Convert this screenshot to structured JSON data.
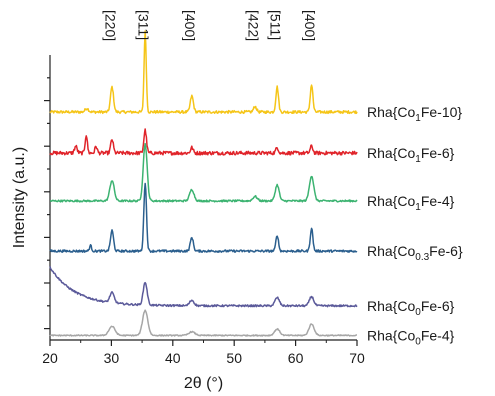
{
  "chart_data": {
    "type": "line",
    "title": "",
    "xlabel": "2θ (°)",
    "ylabel": "Intensity (a.u.)",
    "xlim": [
      20,
      70
    ],
    "ylim": [
      0,
      6.25
    ],
    "x_ticks": [
      20,
      30,
      40,
      50,
      60,
      70
    ],
    "grid": false,
    "legend": "series labels at right end of each trace",
    "peak_labels": [
      {
        "text": "[220]",
        "x": 30.1
      },
      {
        "text": "[311]",
        "x": 35.5
      },
      {
        "text": "[400]",
        "x": 43.1
      },
      {
        "text": "[422]",
        "x": 53.4
      },
      {
        "text": "[511]",
        "x": 57.0
      },
      {
        "text": "[400]",
        "x": 62.6
      }
    ],
    "series": [
      {
        "name": "Rha{Co1Fe-10}",
        "label": {
          "prefix": "Rha{Co",
          "sub": "1",
          "suffix": "Fe-10}"
        },
        "color": "#f5c518",
        "baseline": 5.0,
        "noise": 0.03,
        "peaks": [
          {
            "x": 30.1,
            "h": 0.55,
            "w": 0.35
          },
          {
            "x": 35.5,
            "h": 1.75,
            "w": 0.25
          },
          {
            "x": 43.1,
            "h": 0.35,
            "w": 0.35
          },
          {
            "x": 53.4,
            "h": 0.12,
            "w": 0.35
          },
          {
            "x": 57.0,
            "h": 0.55,
            "w": 0.3
          },
          {
            "x": 62.6,
            "h": 0.6,
            "w": 0.3
          },
          {
            "x": 26.0,
            "h": 0.08,
            "w": 0.4
          }
        ]
      },
      {
        "name": "Rha{Co1Fe-6}",
        "label": {
          "prefix": "Rha{Co",
          "sub": "1",
          "suffix": "Fe-6}"
        },
        "color": "#e0242a",
        "baseline": 4.1,
        "noise": 0.04,
        "peaks": [
          {
            "x": 25.9,
            "h": 0.4,
            "w": 0.25
          },
          {
            "x": 30.1,
            "h": 0.3,
            "w": 0.3
          },
          {
            "x": 35.5,
            "h": 0.5,
            "w": 0.3
          },
          {
            "x": 43.1,
            "h": 0.12,
            "w": 0.3
          },
          {
            "x": 57.0,
            "h": 0.12,
            "w": 0.3
          },
          {
            "x": 62.6,
            "h": 0.15,
            "w": 0.3
          },
          {
            "x": 27.5,
            "h": 0.15,
            "w": 0.25
          },
          {
            "x": 24.2,
            "h": 0.15,
            "w": 0.3
          }
        ]
      },
      {
        "name": "Rha{Co1Fe-4}",
        "label": {
          "prefix": "Rha{Co",
          "sub": "1",
          "suffix": "Fe-4}"
        },
        "color": "#3cb371",
        "baseline": 3.05,
        "noise": 0.02,
        "peaks": [
          {
            "x": 30.1,
            "h": 0.45,
            "w": 0.5
          },
          {
            "x": 35.5,
            "h": 1.25,
            "w": 0.45
          },
          {
            "x": 43.1,
            "h": 0.25,
            "w": 0.5
          },
          {
            "x": 53.4,
            "h": 0.1,
            "w": 0.5
          },
          {
            "x": 57.0,
            "h": 0.35,
            "w": 0.45
          },
          {
            "x": 62.6,
            "h": 0.55,
            "w": 0.5
          }
        ]
      },
      {
        "name": "Rha{Co0.3Fe-6}",
        "label": {
          "prefix": "Rha{Co",
          "sub": "0.3",
          "suffix": "Fe-6}"
        },
        "color": "#2b5f8e",
        "baseline": 1.95,
        "noise": 0.025,
        "peaks": [
          {
            "x": 26.6,
            "h": 0.12,
            "w": 0.25
          },
          {
            "x": 30.1,
            "h": 0.45,
            "w": 0.35
          },
          {
            "x": 35.5,
            "h": 1.5,
            "w": 0.3
          },
          {
            "x": 43.1,
            "h": 0.3,
            "w": 0.35
          },
          {
            "x": 57.0,
            "h": 0.35,
            "w": 0.3
          },
          {
            "x": 62.6,
            "h": 0.5,
            "w": 0.3
          }
        ]
      },
      {
        "name": "Rha{Co0Fe-6}",
        "label": {
          "prefix": "Rha{Co",
          "sub": "0",
          "suffix": "Fe-6}"
        },
        "color": "#5b5a9a",
        "baseline": 0.75,
        "noise": 0.02,
        "decay": {
          "amp": 0.85,
          "tau": 4.0
        },
        "peaks": [
          {
            "x": 30.1,
            "h": 0.22,
            "w": 0.5
          },
          {
            "x": 35.5,
            "h": 0.5,
            "w": 0.45
          },
          {
            "x": 43.1,
            "h": 0.12,
            "w": 0.5
          },
          {
            "x": 57.0,
            "h": 0.18,
            "w": 0.5
          },
          {
            "x": 62.6,
            "h": 0.2,
            "w": 0.5
          }
        ]
      },
      {
        "name": "Rha{Co0Fe-4}",
        "label": {
          "prefix": "Rha{Co",
          "sub": "0",
          "suffix": "Fe-4}"
        },
        "color": "#a6a6a6",
        "baseline": 0.1,
        "noise": 0.012,
        "peaks": [
          {
            "x": 30.1,
            "h": 0.2,
            "w": 0.7
          },
          {
            "x": 35.5,
            "h": 0.55,
            "w": 0.6
          },
          {
            "x": 43.1,
            "h": 0.08,
            "w": 0.7
          },
          {
            "x": 57.0,
            "h": 0.14,
            "w": 0.6
          },
          {
            "x": 62.6,
            "h": 0.25,
            "w": 0.6
          }
        ]
      }
    ]
  }
}
